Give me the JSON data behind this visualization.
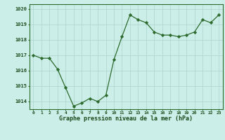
{
  "x": [
    0,
    1,
    2,
    3,
    4,
    5,
    6,
    7,
    8,
    9,
    10,
    11,
    12,
    13,
    14,
    15,
    16,
    17,
    18,
    19,
    20,
    21,
    22,
    23
  ],
  "y": [
    1017.0,
    1016.8,
    1016.8,
    1016.1,
    1014.9,
    1013.7,
    1013.9,
    1014.2,
    1014.0,
    1014.4,
    1016.7,
    1018.2,
    1019.6,
    1019.3,
    1019.1,
    1018.5,
    1018.3,
    1018.3,
    1018.2,
    1018.3,
    1018.5,
    1019.3,
    1019.1,
    1019.6
  ],
  "line_color": "#2d6a2d",
  "marker_color": "#2d6a2d",
  "bg_color": "#cceee8",
  "grid_color": "#aad4cc",
  "xlabel": "Graphe pression niveau de la mer (hPa)",
  "xlabel_color": "#1a4a1a",
  "tick_color": "#1a4a1a",
  "ylim": [
    1013.5,
    1020.3
  ],
  "yticks": [
    1014,
    1015,
    1016,
    1017,
    1018,
    1019,
    1020
  ],
  "xticks": [
    0,
    1,
    2,
    3,
    4,
    5,
    6,
    7,
    8,
    9,
    10,
    11,
    12,
    13,
    14,
    15,
    16,
    17,
    18,
    19,
    20,
    21,
    22,
    23
  ],
  "spine_color": "#2d6a2d",
  "fig_bg": "#cceee8",
  "bottom_bar_color": "#2d6a2d"
}
